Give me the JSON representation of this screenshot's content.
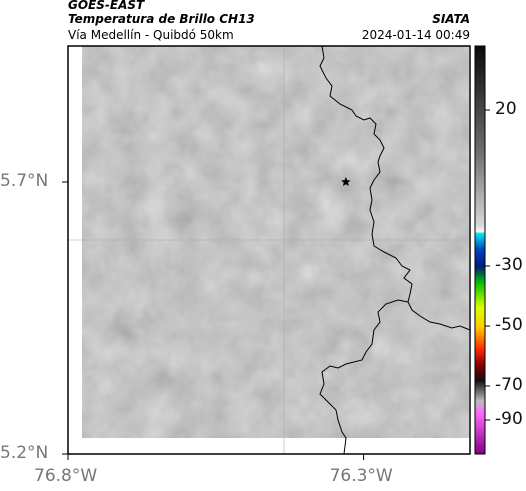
{
  "header": {
    "satellite": "GOES-EAST",
    "product": "Temperatura de Brillo CH13",
    "region": "Vía Medellín - Quibdó 50km",
    "org": "SIATA",
    "datetime": "2024-01-14 00:49"
  },
  "axes": {
    "lat_ticks": [
      {
        "label": "5.7°N",
        "value": 5.7
      },
      {
        "label": "5.2°N",
        "value": 5.2
      }
    ],
    "lon_ticks": [
      {
        "label": "76.8°W",
        "value": -76.8
      },
      {
        "label": "76.3°W",
        "value": -76.3
      }
    ],
    "lat_range": [
      5.2,
      5.95
    ],
    "lon_range": [
      -76.8,
      -76.12
    ]
  },
  "colorbar": {
    "ticks": [
      {
        "label": "20",
        "value": 20
      },
      {
        "label": "-30",
        "value": -30
      },
      {
        "label": "-50",
        "value": -50
      },
      {
        "label": "-70",
        "value": -70
      },
      {
        "label": "-90",
        "value": -90
      }
    ]
  },
  "marker": {
    "icon": "star-icon",
    "lat": 5.7,
    "lon": -76.33
  },
  "colors": {
    "field": "#8a8a8a",
    "border": "#000000"
  }
}
